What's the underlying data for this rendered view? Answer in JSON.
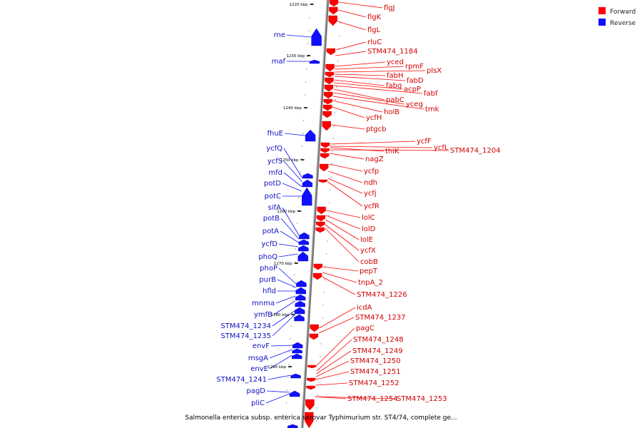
{
  "caption": "Salmonella enterica subsp. enterica serovar Typhimurium str. ST4/74, complete ge...",
  "colors": {
    "forward": "#ff0000",
    "reverse": "#1010ff",
    "backbone": "#777777"
  },
  "legend": [
    {
      "label": "Forward",
      "strand": "forward"
    },
    {
      "label": "Reverse",
      "strand": "reverse"
    }
  ],
  "ticks": [
    "1220 kbp",
    "1230 kbp",
    "1240 kbp",
    "1250 kbp",
    "1260 kbp",
    "1270 kbp",
    "1280 kbp",
    "1290 kbp"
  ],
  "forward_labels": [
    "flgJ",
    "flgK",
    "flgL",
    "rluC",
    "STM474_1184",
    "yced",
    "rpmF",
    "plsX",
    "fabH",
    "fabD",
    "fabg",
    "acpP",
    "fabf",
    "pabC",
    "yceg",
    "tmk",
    "holB",
    "ycfH",
    "ptgcb",
    "ycfF",
    "ycfL",
    "thiK",
    "STM474_1204",
    "nagZ",
    "ycfp",
    "ndh",
    "ycfj",
    "ycfR",
    "lolC",
    "lolD",
    "lolE",
    "ycfX",
    "cobB",
    "pepT",
    "tnpA_2",
    "STM474_1226",
    "icdA",
    "STM474_1237",
    "pagC",
    "STM474_1248",
    "STM474_1249",
    "STM474_1250",
    "STM474_1251",
    "STM474_1252",
    "STM474_1254",
    "STM474_1253"
  ],
  "reverse_labels": [
    "rne",
    "maf",
    "fhuE",
    "ycfQ",
    "ycfS",
    "mfd",
    "potD",
    "potC",
    "sifA",
    "potB",
    "potA",
    "ycfD",
    "phoQ",
    "phoP",
    "purB",
    "hfld",
    "mnma",
    "ymfB",
    "STM474_1234",
    "STM474_1235",
    "envF",
    "msgA",
    "envE",
    "STM474_1241",
    "pagD",
    "pliC"
  ]
}
